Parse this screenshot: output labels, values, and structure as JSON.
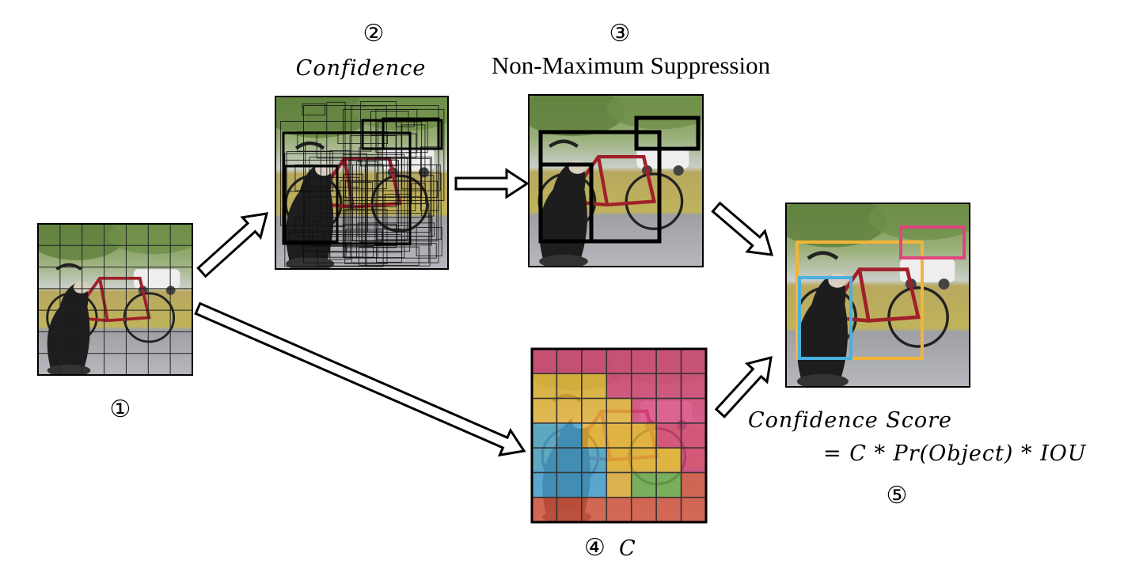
{
  "steps": {
    "step1": {
      "number": "①"
    },
    "step2": {
      "number": "②",
      "label": "Confidence"
    },
    "step3": {
      "number": "③",
      "label": "Non-Maximum Suppression"
    },
    "step4": {
      "number": "④",
      "label": "C"
    },
    "step5": {
      "number": "⑤",
      "label_line1": "Confidence Score",
      "label_line2": "= C * Pr(Object) * IOU"
    }
  },
  "grid_size": 7,
  "class_map": {
    "colors": {
      "P": "#d9457e",
      "Y": "#e8b53c",
      "B": "#4aa6d6",
      "G": "#6fb04c",
      "R": "#d9573f"
    },
    "cells": [
      "PPPPPPP",
      "YYYPPPP",
      "YYYYPPP",
      "BBYYYPP",
      "BBBYYYP",
      "BBBYGGR",
      "RRRRRRR"
    ]
  },
  "final_box_colors": {
    "bicycle": "#f2b437",
    "dog": "#4ab0e0",
    "car": "#e0447e"
  },
  "nms_box_color": "#000000"
}
